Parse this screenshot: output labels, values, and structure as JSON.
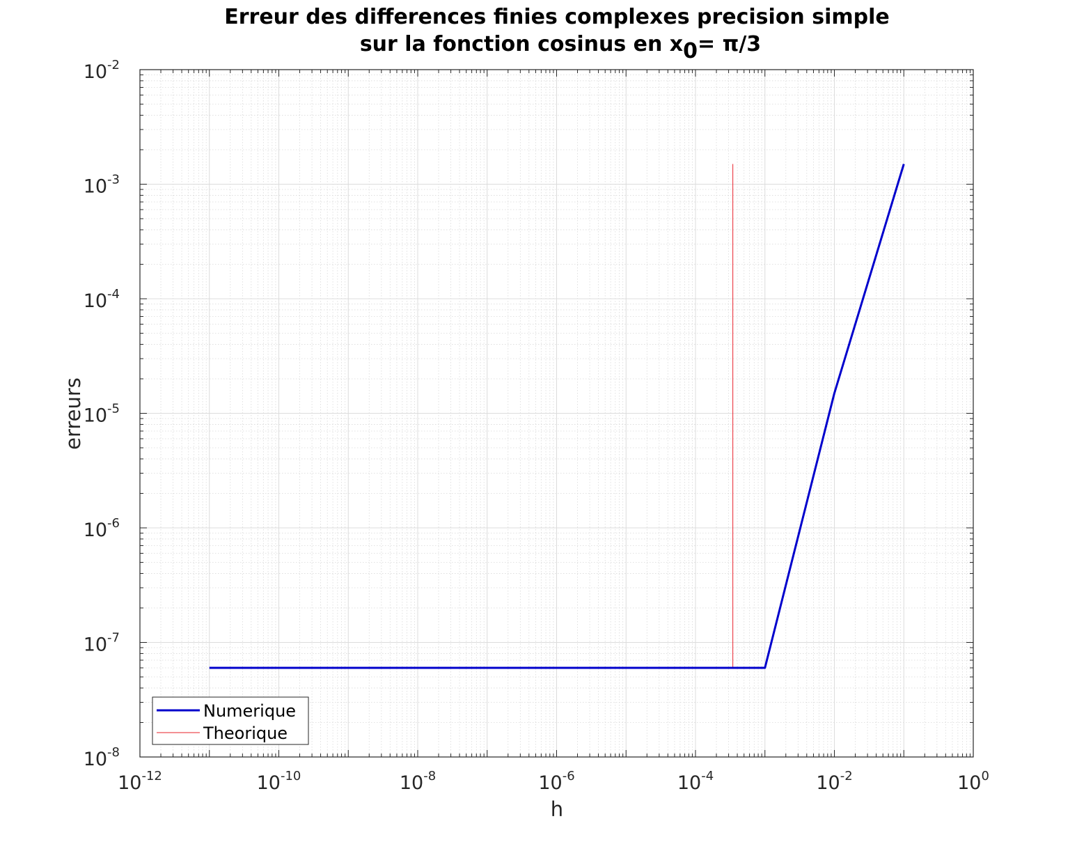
{
  "chart_data": {
    "type": "line",
    "title_line1": "Erreur des differences finies complexes precision simple",
    "title_line2_prefix": "sur la fonction cosinus en x",
    "title_line2_sub": "0",
    "title_line2_suffix": "= π/3",
    "xlabel": "h",
    "ylabel": "erreurs",
    "xscale": "log",
    "yscale": "log",
    "xlim": [
      1e-12,
      1
    ],
    "ylim": [
      1e-08,
      0.01
    ],
    "grid": true,
    "minor_grid": true,
    "legend_position": "bottom-left",
    "x_tick_labels": [
      {
        "base": "10",
        "exp": "-12"
      },
      {
        "base": "10",
        "exp": "-10"
      },
      {
        "base": "10",
        "exp": "-8"
      },
      {
        "base": "10",
        "exp": "-6"
      },
      {
        "base": "10",
        "exp": "-4"
      },
      {
        "base": "10",
        "exp": "-2"
      },
      {
        "base": "10",
        "exp": "0"
      }
    ],
    "y_tick_labels": [
      {
        "base": "10",
        "exp": "-8"
      },
      {
        "base": "10",
        "exp": "-7"
      },
      {
        "base": "10",
        "exp": "-6"
      },
      {
        "base": "10",
        "exp": "-5"
      },
      {
        "base": "10",
        "exp": "-4"
      },
      {
        "base": "10",
        "exp": "-3"
      },
      {
        "base": "10",
        "exp": "-2"
      }
    ],
    "series": [
      {
        "name": "Numerique",
        "color": "#0000cc",
        "x": [
          1e-11,
          1e-10,
          1e-09,
          1e-08,
          1e-07,
          1e-06,
          1e-05,
          0.0001,
          0.001,
          0.01,
          0.1
        ],
        "y": [
          6e-08,
          6e-08,
          6e-08,
          6e-08,
          6e-08,
          6e-08,
          6e-08,
          6e-08,
          6e-08,
          1.5e-05,
          0.0015
        ]
      },
      {
        "name": "Theorique",
        "color": "#e8202a",
        "x": [
          0.000345,
          0.000345
        ],
        "y": [
          6e-08,
          0.0015
        ]
      }
    ]
  }
}
